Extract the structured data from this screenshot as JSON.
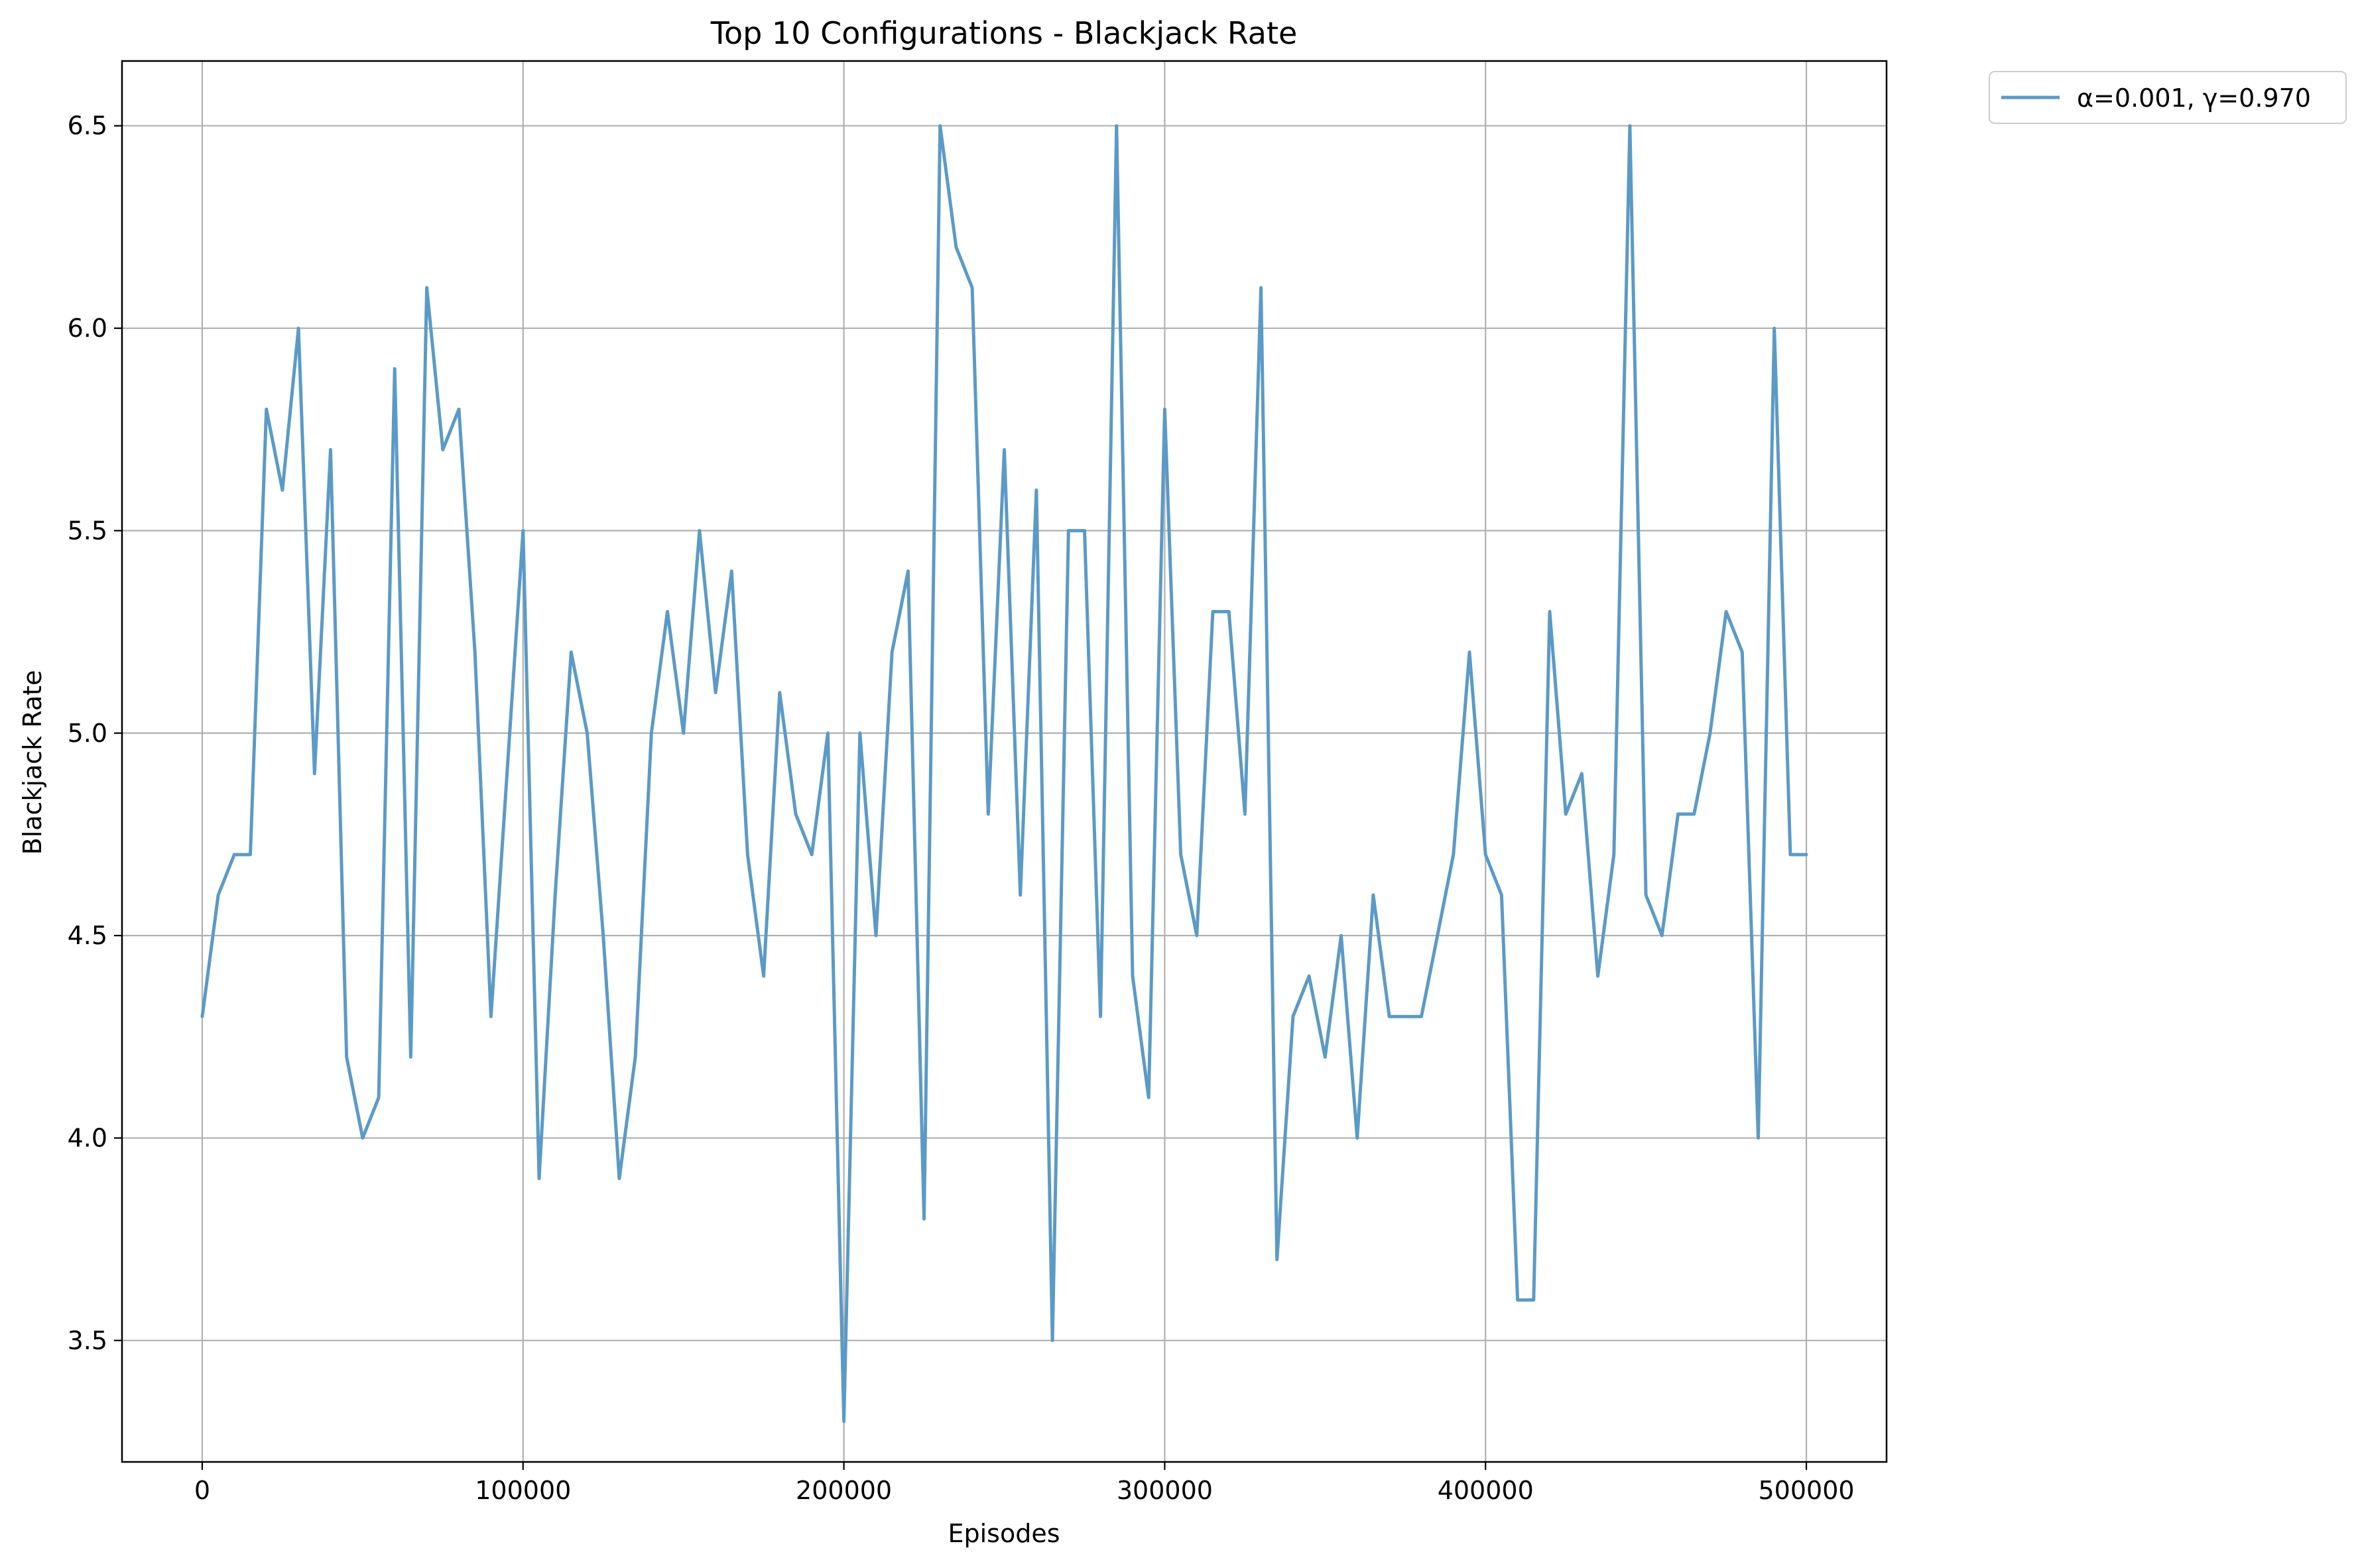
{
  "chart_data": {
    "type": "line",
    "title": "Top 10 Configurations - Blackjack Rate",
    "xlabel": "Episodes",
    "ylabel": "Blackjack Rate",
    "xlim": [
      -25000,
      525000
    ],
    "ylim": [
      3.2,
      6.66
    ],
    "xticks": [
      0,
      100000,
      200000,
      300000,
      400000,
      500000
    ],
    "xtick_labels": [
      "0",
      "100000",
      "200000",
      "300000",
      "400000",
      "500000"
    ],
    "yticks": [
      3.5,
      4.0,
      4.5,
      5.0,
      5.5,
      6.0,
      6.5
    ],
    "ytick_labels": [
      "3.5",
      "4.0",
      "4.5",
      "5.0",
      "5.5",
      "6.0",
      "6.5"
    ],
    "grid": true,
    "legend_position": "outside-top-right",
    "series": [
      {
        "name": "α=0.001, γ=0.970",
        "color": "#5b9ac6",
        "x": [
          0,
          5000,
          10000,
          15000,
          20000,
          25000,
          30000,
          35000,
          40000,
          45000,
          50000,
          55000,
          60000,
          65000,
          70000,
          75000,
          80000,
          85000,
          90000,
          95000,
          100000,
          105000,
          110000,
          115000,
          120000,
          125000,
          130000,
          135000,
          140000,
          145000,
          150000,
          155000,
          160000,
          165000,
          170000,
          175000,
          180000,
          185000,
          190000,
          195000,
          200000,
          205000,
          210000,
          215000,
          220000,
          225000,
          230000,
          235000,
          240000,
          245000,
          250000,
          255000,
          260000,
          265000,
          270000,
          275000,
          280000,
          285000,
          290000,
          295000,
          300000,
          305000,
          310000,
          315000,
          320000,
          325000,
          330000,
          335000,
          340000,
          345000,
          350000,
          355000,
          360000,
          365000,
          370000,
          375000,
          380000,
          385000,
          390000,
          395000,
          400000,
          405000,
          410000,
          415000,
          420000,
          425000,
          430000,
          435000,
          440000,
          445000,
          450000,
          455000,
          460000,
          465000,
          470000,
          475000,
          480000,
          485000,
          490000,
          495000,
          500000
        ],
        "y": [
          4.3,
          4.6,
          4.7,
          4.7,
          5.8,
          5.6,
          6.0,
          4.9,
          5.7,
          4.2,
          4.0,
          4.1,
          5.9,
          4.2,
          6.1,
          5.7,
          5.8,
          5.2,
          4.3,
          4.9,
          5.5,
          3.9,
          4.6,
          5.2,
          5.0,
          4.5,
          3.9,
          4.2,
          5.0,
          5.3,
          5.0,
          5.5,
          5.1,
          5.4,
          4.7,
          4.4,
          5.1,
          4.8,
          4.7,
          5.0,
          3.3,
          5.0,
          4.5,
          5.2,
          5.4,
          3.8,
          6.5,
          6.2,
          6.1,
          4.8,
          5.7,
          4.6,
          5.6,
          3.5,
          5.5,
          5.5,
          4.3,
          6.5,
          4.4,
          4.1,
          5.8,
          4.7,
          4.5,
          5.3,
          5.3,
          4.8,
          6.1,
          3.7,
          4.3,
          4.4,
          4.2,
          4.5,
          4.0,
          4.6,
          4.3,
          4.3,
          4.3,
          4.5,
          4.7,
          5.2,
          4.7,
          4.6,
          3.6,
          3.6,
          5.3,
          4.8,
          4.9,
          4.4,
          4.7,
          6.5,
          4.6,
          4.5,
          4.8,
          4.8,
          5.0,
          5.3,
          5.2,
          4.0,
          6.0,
          4.7,
          4.7
        ]
      }
    ]
  }
}
